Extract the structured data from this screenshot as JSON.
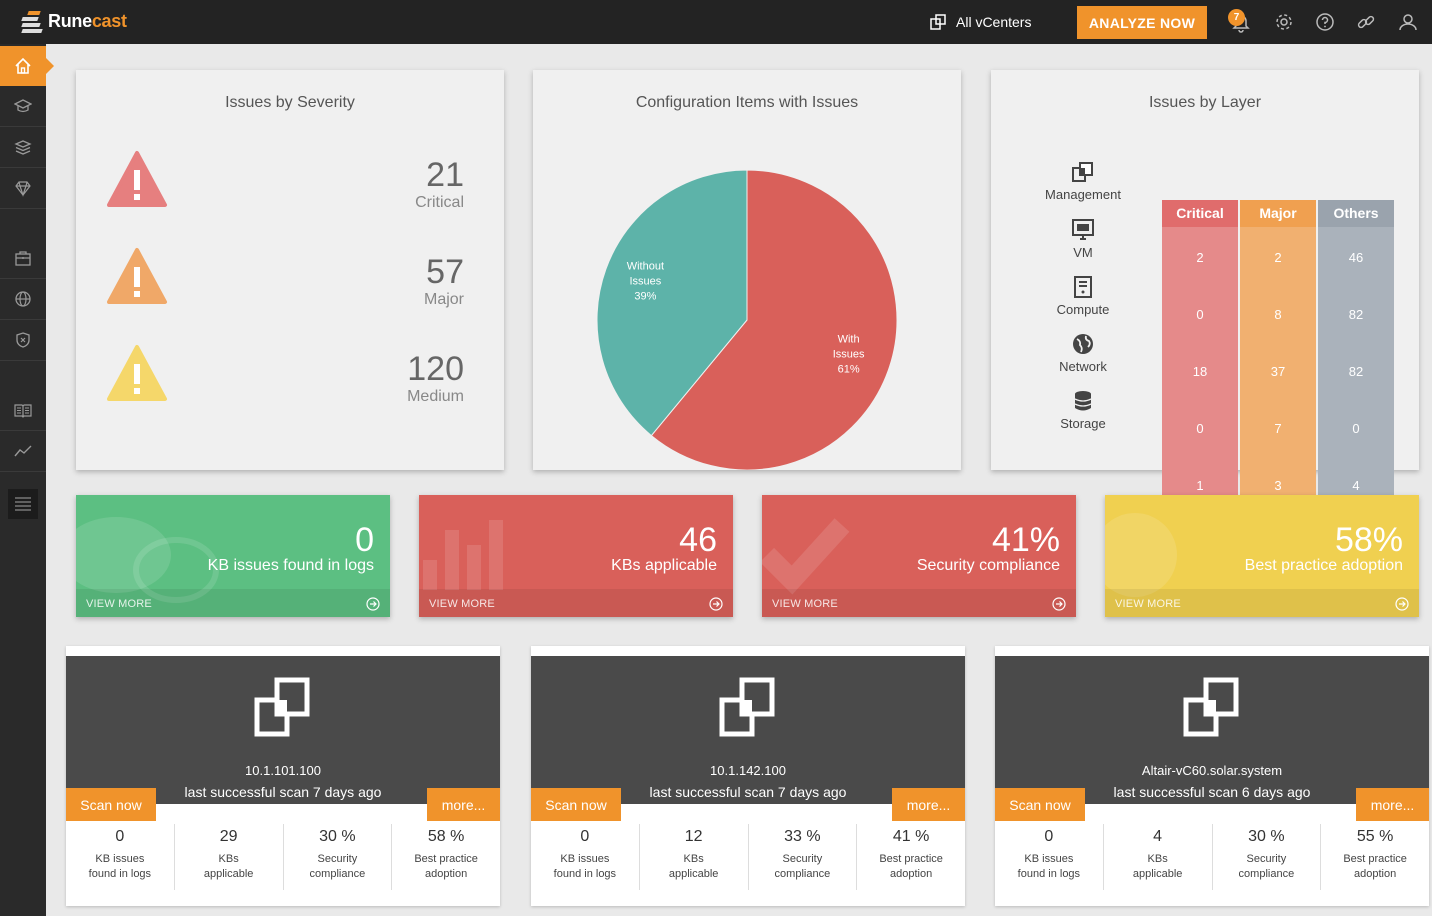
{
  "app": {
    "name_part1": "Rune",
    "name_part2": "cast"
  },
  "topbar": {
    "vcenter_label": "All vCenters",
    "analyze_label": "ANALYZE NOW",
    "notifications_count": "7"
  },
  "severity": {
    "title": "Issues by Severity",
    "items": [
      {
        "count": "21",
        "label": "Critical",
        "color": "#e67f7f"
      },
      {
        "count": "57",
        "label": "Major",
        "color": "#f0a868"
      },
      {
        "count": "120",
        "label": "Medium",
        "color": "#f5d76a"
      }
    ]
  },
  "config_items": {
    "title": "Configuration Items with Issues",
    "chart_data": {
      "type": "pie",
      "slices": [
        {
          "label_lines": [
            "With",
            "Issues",
            "61%"
          ],
          "value": 61,
          "color": "#d9605a"
        },
        {
          "label_lines": [
            "Without",
            "Issues",
            "39%"
          ],
          "value": 39,
          "color": "#5db3a9"
        }
      ]
    }
  },
  "layers": {
    "title": "Issues by Layer",
    "columns": [
      {
        "label": "Critical",
        "color": "#e06c6c",
        "bg": "#e58a8a"
      },
      {
        "label": "Major",
        "color": "#f0a050",
        "bg": "#f1b070"
      },
      {
        "label": "Others",
        "color": "#9aa3ad",
        "bg": "#aab2bb"
      }
    ],
    "rows": [
      {
        "name": "Management",
        "values": [
          "2",
          "2",
          "46"
        ]
      },
      {
        "name": "VM",
        "values": [
          "0",
          "8",
          "82"
        ]
      },
      {
        "name": "Compute",
        "values": [
          "18",
          "37",
          "82"
        ]
      },
      {
        "name": "Network",
        "values": [
          "0",
          "7",
          "0"
        ]
      },
      {
        "name": "Storage",
        "values": [
          "1",
          "3",
          "4"
        ]
      }
    ]
  },
  "tiles": [
    {
      "big": "0",
      "sub": "KB issues found in logs",
      "view": "VIEW MORE",
      "color": "#5cbf82"
    },
    {
      "big": "46",
      "sub": "KBs applicable",
      "view": "VIEW MORE",
      "color": "#d9605a"
    },
    {
      "big": "41%",
      "sub": "Security compliance",
      "view": "VIEW MORE",
      "color": "#d9605a"
    },
    {
      "big": "58%",
      "sub": "Best practice adoption",
      "view": "VIEW MORE",
      "color": "#f0d050"
    }
  ],
  "vcenters": [
    {
      "name": "10.1.101.100",
      "scan": "last successful scan 7 days ago",
      "scan_btn": "Scan now",
      "more_btn": "more...",
      "stats": [
        {
          "v": "0",
          "l1": "KB issues",
          "l2": "found in logs"
        },
        {
          "v": "29",
          "l1": "KBs",
          "l2": "applicable"
        },
        {
          "v": "30 %",
          "l1": "Security",
          "l2": "compliance"
        },
        {
          "v": "58 %",
          "l1": "Best practice",
          "l2": "adoption"
        }
      ]
    },
    {
      "name": "10.1.142.100",
      "scan": "last successful scan 7 days ago",
      "scan_btn": "Scan now",
      "more_btn": "more...",
      "stats": [
        {
          "v": "0",
          "l1": "KB issues",
          "l2": "found in logs"
        },
        {
          "v": "12",
          "l1": "KBs",
          "l2": "applicable"
        },
        {
          "v": "33 %",
          "l1": "Security",
          "l2": "compliance"
        },
        {
          "v": "41 %",
          "l1": "Best practice",
          "l2": "adoption"
        }
      ]
    },
    {
      "name": "Altair-vC60.solar.system",
      "scan": "last successful scan 6 days ago",
      "scan_btn": "Scan now",
      "more_btn": "more...",
      "stats": [
        {
          "v": "0",
          "l1": "KB issues",
          "l2": "found in logs"
        },
        {
          "v": "4",
          "l1": "KBs",
          "l2": "applicable"
        },
        {
          "v": "30 %",
          "l1": "Security",
          "l2": "compliance"
        },
        {
          "v": "55 %",
          "l1": "Best practice",
          "l2": "adoption"
        }
      ]
    }
  ],
  "sidebar": {
    "items": [
      {
        "icon": "home-icon",
        "active": true
      },
      {
        "icon": "graduation-cap-icon"
      },
      {
        "icon": "layers-icon"
      },
      {
        "icon": "diamond-icon"
      },
      {
        "icon": "briefcase-icon"
      },
      {
        "icon": "globe-icon"
      },
      {
        "icon": "shield-icon"
      },
      {
        "icon": "book-icon"
      },
      {
        "icon": "trend-icon"
      },
      {
        "icon": "list-icon"
      }
    ]
  }
}
